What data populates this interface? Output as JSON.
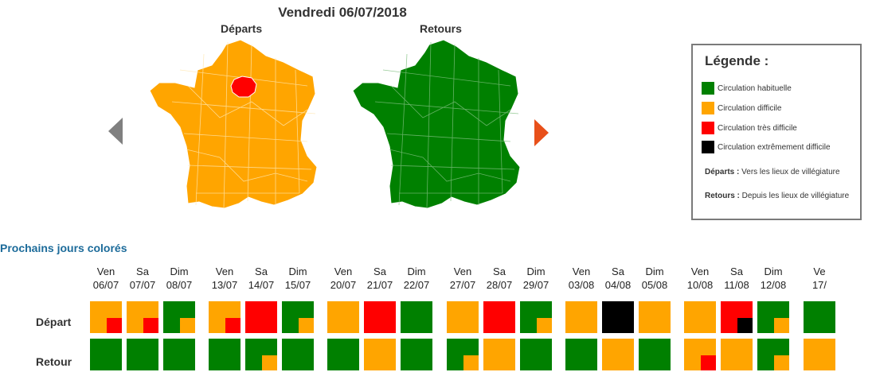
{
  "header": {
    "title": "Vendredi 06/07/2018"
  },
  "maps": {
    "departs": {
      "label": "Départs",
      "color": "#FFA500",
      "idf_color": "#FF0000"
    },
    "retours": {
      "label": "Retours",
      "color": "#008000"
    }
  },
  "navigation": {
    "prev_color": "#808080",
    "next_color": "#E8501A"
  },
  "legend": {
    "title": "Légende :",
    "items": [
      {
        "label": "Circulation habituelle",
        "color": "#008000"
      },
      {
        "label": "Circulation difficile",
        "color": "#FFA500"
      },
      {
        "label": "Circulation très difficile",
        "color": "#FF0000"
      },
      {
        "label": "Circulation extrêmement difficile",
        "color": "#000000"
      }
    ],
    "notes": {
      "departs_term": "Départs :",
      "departs_text": " Vers les lieux de villégiature",
      "retours_term": "Retours :",
      "retours_text": " Depuis les lieux de villégiature"
    }
  },
  "calendar": {
    "title": "Prochains jours colorés",
    "row_labels": {
      "depart": "Départ",
      "retour": "Retour"
    },
    "colors": {
      "G": "#008000",
      "O": "#FFA500",
      "R": "#FF0000",
      "B": "#000000"
    },
    "days": [
      {
        "dow": "Ven",
        "date": "06/07",
        "depart": {
          "main": "O",
          "sub": "R"
        },
        "retour": {
          "main": "G"
        }
      },
      {
        "dow": "Sa",
        "date": "07/07",
        "depart": {
          "main": "O",
          "sub": "R"
        },
        "retour": {
          "main": "G"
        }
      },
      {
        "dow": "Dim",
        "date": "08/07",
        "depart": {
          "main": "G",
          "sub": "O"
        },
        "retour": {
          "main": "G"
        }
      },
      {
        "dow": "Ven",
        "date": "13/07",
        "depart": {
          "main": "O",
          "sub": "R"
        },
        "retour": {
          "main": "G"
        }
      },
      {
        "dow": "Sa",
        "date": "14/07",
        "depart": {
          "main": "R"
        },
        "retour": {
          "main": "G",
          "sub": "O"
        }
      },
      {
        "dow": "Dim",
        "date": "15/07",
        "depart": {
          "main": "G",
          "sub": "O"
        },
        "retour": {
          "main": "G"
        }
      },
      {
        "dow": "Ven",
        "date": "20/07",
        "depart": {
          "main": "O"
        },
        "retour": {
          "main": "G"
        }
      },
      {
        "dow": "Sa",
        "date": "21/07",
        "depart": {
          "main": "R"
        },
        "retour": {
          "main": "O"
        }
      },
      {
        "dow": "Dim",
        "date": "22/07",
        "depart": {
          "main": "G"
        },
        "retour": {
          "main": "G"
        }
      },
      {
        "dow": "Ven",
        "date": "27/07",
        "depart": {
          "main": "O"
        },
        "retour": {
          "main": "G",
          "sub": "O"
        }
      },
      {
        "dow": "Sa",
        "date": "28/07",
        "depart": {
          "main": "R"
        },
        "retour": {
          "main": "O"
        }
      },
      {
        "dow": "Dim",
        "date": "29/07",
        "depart": {
          "main": "G",
          "sub": "O"
        },
        "retour": {
          "main": "G"
        }
      },
      {
        "dow": "Ven",
        "date": "03/08",
        "depart": {
          "main": "O"
        },
        "retour": {
          "main": "G"
        }
      },
      {
        "dow": "Sa",
        "date": "04/08",
        "depart": {
          "main": "B"
        },
        "retour": {
          "main": "O"
        }
      },
      {
        "dow": "Dim",
        "date": "05/08",
        "depart": {
          "main": "O"
        },
        "retour": {
          "main": "G"
        }
      },
      {
        "dow": "Ven",
        "date": "10/08",
        "depart": {
          "main": "O"
        },
        "retour": {
          "main": "O",
          "sub": "R"
        }
      },
      {
        "dow": "Sa",
        "date": "11/08",
        "depart": {
          "main": "R",
          "sub": "B"
        },
        "retour": {
          "main": "O"
        }
      },
      {
        "dow": "Dim",
        "date": "12/08",
        "depart": {
          "main": "G",
          "sub": "O"
        },
        "retour": {
          "main": "G",
          "sub": "O"
        }
      },
      {
        "dow": "Ve",
        "date": "17/",
        "depart": {
          "main": "G"
        },
        "retour": {
          "main": "O"
        }
      }
    ]
  }
}
